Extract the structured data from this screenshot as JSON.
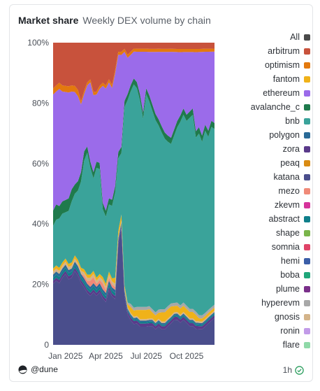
{
  "header": {
    "title": "Market share",
    "subtitle": "Weekly DEX volume by chain"
  },
  "footer": {
    "brand": "@dune",
    "age": "1h"
  },
  "chart_data": {
    "type": "area",
    "stacked": true,
    "normalized": true,
    "title": "Market share",
    "subtitle": "Weekly DEX volume by chain",
    "y_ticks": [
      "0",
      "20%",
      "40%",
      "60%",
      "80%",
      "100%"
    ],
    "ylim": [
      0,
      100
    ],
    "x_ticks": [
      {
        "label": "Jan 2025",
        "week": 4
      },
      {
        "label": "Apr 2025",
        "week": 17
      },
      {
        "label": "Jul 2025",
        "week": 30
      },
      {
        "label": "Oct 2025",
        "week": 43
      }
    ],
    "grid": false,
    "legend_position": "right",
    "legend": [
      {
        "name": "All",
        "color": "#4a4a4a"
      },
      {
        "name": "arbitrum",
        "color": "#c8523c"
      },
      {
        "name": "optimism",
        "color": "#e3790e"
      },
      {
        "name": "fantom",
        "color": "#f0b219"
      },
      {
        "name": "ethereum",
        "color": "#9b6bea"
      },
      {
        "name": "avalanche_c",
        "color": "#1f7a4c"
      },
      {
        "name": "bnb",
        "color": "#3aa39a"
      },
      {
        "name": "polygon",
        "color": "#2a6a97"
      },
      {
        "name": "zora",
        "color": "#5a3a8a"
      },
      {
        "name": "peaq",
        "color": "#d98b13"
      },
      {
        "name": "katana",
        "color": "#4a4e8c"
      },
      {
        "name": "mezo",
        "color": "#f08a78"
      },
      {
        "name": "zkevm",
        "color": "#d6339b"
      },
      {
        "name": "abstract",
        "color": "#0f7f8a"
      },
      {
        "name": "shape",
        "color": "#7ab54a"
      },
      {
        "name": "somnia",
        "color": "#e04468"
      },
      {
        "name": "hemi",
        "color": "#3b5ea8"
      },
      {
        "name": "boba",
        "color": "#1fa67a"
      },
      {
        "name": "plume",
        "color": "#7a2f8a"
      },
      {
        "name": "hyperevm",
        "color": "#a8a8a8"
      },
      {
        "name": "gnosis",
        "color": "#d4b48a"
      },
      {
        "name": "ronin",
        "color": "#c29be8"
      },
      {
        "name": "flare",
        "color": "#8fd9a8"
      }
    ],
    "x_weeks": [
      0,
      1,
      2,
      3,
      4,
      5,
      6,
      7,
      8,
      9,
      10,
      11,
      12,
      13,
      14,
      15,
      16,
      17,
      18,
      19,
      20,
      21,
      22,
      23,
      24,
      25,
      26,
      27,
      28,
      29,
      30,
      31,
      32,
      33,
      34,
      35,
      36,
      37,
      38,
      39,
      40,
      41,
      42,
      43,
      44,
      45,
      46,
      47,
      48,
      49,
      50,
      51,
      52
    ],
    "series": [
      {
        "name": "katana",
        "color": "#4a4e8c",
        "values": [
          20,
          21,
          20,
          22,
          23,
          21,
          22,
          24,
          22,
          20,
          19,
          17,
          16,
          17,
          16,
          17,
          15,
          14,
          18,
          16,
          15,
          33,
          38,
          16,
          10,
          8,
          7,
          7,
          6,
          6,
          6,
          6,
          6,
          5,
          6,
          5,
          5,
          6,
          7,
          8,
          8,
          7,
          8,
          7,
          6,
          6,
          5,
          5,
          5,
          6,
          7,
          8,
          9
        ]
      },
      {
        "name": "zora",
        "color": "#5a3a8a",
        "values": [
          1,
          1,
          1,
          1,
          1,
          1,
          1,
          1,
          1,
          1,
          1,
          1,
          1,
          1,
          1,
          1,
          1,
          1,
          1,
          1,
          1,
          1,
          1,
          1,
          1,
          1,
          1,
          1,
          1,
          1,
          1,
          1,
          1,
          1,
          1,
          1,
          1,
          1,
          1,
          1,
          1,
          1,
          1,
          1,
          1,
          1,
          1,
          1,
          1,
          1,
          1,
          1,
          1
        ]
      },
      {
        "name": "abstract",
        "color": "#0f7f8a",
        "values": [
          1,
          1,
          1,
          1,
          1,
          1,
          1,
          1,
          1,
          1,
          1,
          1,
          1,
          1,
          1,
          1,
          1,
          1,
          1,
          1,
          1,
          0.5,
          0.5,
          0.5,
          0.5,
          0.5,
          0.5,
          0.5,
          0.5,
          0.5,
          0.5,
          0.5,
          0.5,
          0.5,
          0.5,
          0.5,
          0.5,
          0.5,
          0.5,
          0.5,
          0.5,
          0.5,
          0.5,
          0.5,
          0.5,
          0.5,
          0.5,
          0.5,
          0.5,
          0.5,
          0.5,
          0.5,
          0.5
        ]
      },
      {
        "name": "polygon",
        "color": "#2a6a97",
        "values": [
          1,
          1,
          1,
          1,
          1,
          1,
          1,
          1,
          1,
          1,
          1,
          1,
          1,
          1,
          1,
          1,
          1,
          1,
          1,
          1,
          1,
          0.5,
          0.5,
          0.5,
          0.5,
          0.5,
          0.5,
          0.5,
          0.5,
          0.5,
          0.5,
          0.5,
          0.5,
          0.5,
          0.5,
          0.5,
          0.5,
          0.5,
          0.5,
          0.5,
          0.5,
          0.5,
          0.5,
          0.5,
          0.5,
          0.5,
          0.5,
          0.5,
          0.5,
          0.5,
          0.5,
          0.5,
          0.5
        ]
      },
      {
        "name": "mezo",
        "color": "#f08a78",
        "values": [
          0,
          0,
          0,
          0,
          0,
          0,
          0,
          0,
          0,
          0,
          1,
          1,
          2,
          2,
          1,
          1,
          2,
          1,
          1,
          1,
          1,
          0,
          0,
          0,
          0,
          0,
          0,
          0,
          0,
          0,
          0,
          0,
          0,
          0,
          0,
          0,
          0,
          0,
          0,
          0,
          0,
          0,
          0,
          0,
          0,
          0,
          0,
          0,
          0,
          0,
          0,
          0,
          0
        ]
      },
      {
        "name": "gnosis",
        "color": "#d4b48a",
        "values": [
          1,
          1,
          1,
          1,
          1,
          1,
          1,
          1,
          1,
          1,
          1,
          1,
          1,
          1,
          1,
          1,
          1,
          1,
          1,
          1,
          1,
          0.5,
          0.5,
          0.5,
          0.5,
          0.5,
          0.5,
          0.5,
          0.5,
          0.5,
          0.5,
          0.5,
          0.5,
          0.5,
          0.5,
          0.5,
          0.5,
          0.5,
          0.5,
          0.5,
          0.5,
          0.5,
          0.5,
          0.5,
          0.5,
          0.5,
          0.5,
          0.5,
          0.5,
          0.5,
          0.5,
          0.5,
          0.5
        ]
      },
      {
        "name": "fantom",
        "color": "#f0b219",
        "values": [
          1,
          1,
          1,
          1,
          1,
          1,
          1,
          1,
          1,
          1,
          1,
          1,
          1,
          1,
          1,
          1,
          1,
          1,
          1,
          1,
          2,
          2,
          2,
          1,
          1,
          2,
          2,
          2,
          3,
          3,
          3,
          3,
          2,
          2,
          2,
          3,
          3,
          3,
          3,
          2,
          2,
          2,
          2,
          2,
          2,
          2,
          2,
          1,
          1,
          1,
          1,
          1,
          1
        ]
      },
      {
        "name": "hyperevm",
        "color": "#a8a8a8",
        "values": [
          0,
          0,
          0,
          0,
          0,
          0,
          0,
          0,
          0,
          0,
          0,
          0,
          0,
          0,
          0,
          0,
          0,
          0,
          0,
          0,
          0,
          0,
          0,
          0,
          0.5,
          1,
          1,
          1,
          1,
          1,
          1,
          1,
          1,
          1,
          1,
          1,
          1,
          1,
          1,
          1,
          1,
          1,
          1,
          1,
          1,
          1,
          1,
          1,
          1,
          1,
          1,
          1,
          1
        ]
      },
      {
        "name": "bnb",
        "color": "#3aa39a",
        "values": [
          14,
          15,
          16,
          16,
          15,
          17,
          20,
          20,
          22,
          28,
          36,
          40,
          35,
          30,
          36,
          34,
          22,
          22,
          22,
          24,
          28,
          24,
          20,
          58,
          67,
          70,
          75,
          72,
          68,
          62,
          70,
          66,
          64,
          62,
          60,
          57,
          55,
          53,
          52,
          54,
          56,
          58,
          60,
          59,
          61,
          62,
          55,
          58,
          56,
          60,
          57,
          60,
          59
        ]
      },
      {
        "name": "avalanche_c",
        "color": "#1f7a4c",
        "values": [
          5,
          5,
          4,
          4,
          4,
          4,
          4,
          3,
          3,
          3,
          3,
          2,
          2,
          2,
          2,
          2,
          2,
          2,
          2,
          2,
          2,
          2,
          2,
          2,
          2,
          2,
          2,
          2,
          2,
          2,
          2,
          2,
          2,
          2,
          2,
          2,
          2,
          2,
          2,
          2,
          2,
          2,
          2,
          2,
          2,
          2,
          2,
          2,
          2,
          2,
          2,
          2,
          2
        ]
      },
      {
        "name": "ethereum",
        "color": "#9b6bea",
        "values": [
          38,
          37,
          38,
          36,
          35,
          34,
          32,
          30,
          27,
          22,
          19,
          20,
          26,
          25,
          22,
          24,
          38,
          40,
          38,
          37,
          37,
          32,
          30,
          16,
          12,
          10,
          9,
          10,
          14,
          20,
          12,
          14,
          17,
          20,
          22,
          24,
          26,
          27,
          28,
          25,
          22,
          20,
          18,
          20,
          19,
          18,
          25,
          24,
          27,
          24,
          26,
          23,
          24
        ]
      },
      {
        "name": "optimism",
        "color": "#e3790e",
        "values": [
          2,
          2,
          2,
          2,
          2,
          2,
          2,
          2,
          2,
          1,
          1,
          1,
          1,
          1,
          1,
          1,
          1,
          1,
          1,
          1,
          1,
          1,
          1,
          1,
          1,
          1,
          1,
          1,
          1,
          1,
          1,
          1,
          1,
          1,
          1,
          1,
          1,
          1,
          1,
          1,
          1,
          1,
          1,
          1,
          1,
          1,
          1,
          1,
          1,
          1,
          1,
          1,
          1
        ]
      },
      {
        "name": "arbitrum",
        "color": "#c8523c",
        "values": [
          15,
          14,
          13,
          14,
          14,
          14,
          14,
          14,
          15,
          19,
          16,
          13,
          12,
          16,
          16,
          14,
          13,
          14,
          12,
          14,
          9,
          3,
          3,
          2,
          4,
          3,
          2,
          2,
          2,
          2,
          2,
          2,
          2,
          2,
          2,
          2,
          2,
          2,
          2,
          2,
          2,
          2,
          2,
          2,
          2,
          2,
          2,
          2,
          2,
          2,
          2,
          2,
          2
        ]
      }
    ]
  }
}
